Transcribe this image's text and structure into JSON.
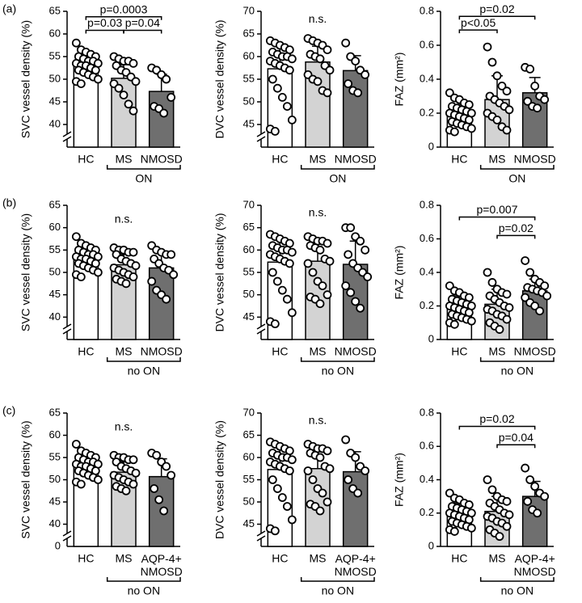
{
  "chart_data": [
    {
      "type": "bar",
      "panel_label": "(a)",
      "ylabel": "SVC vessel density (%)",
      "categories": [
        "HC",
        "MS",
        "NMOSD"
      ],
      "values": [
        53.5,
        50.2,
        47.3
      ],
      "errors": [
        2.3,
        3,
        3.8
      ],
      "colors": [
        "#ffffff",
        "#d3d3d3",
        "#6f6f6f"
      ],
      "ylim": [
        35,
        65
      ],
      "yticks": [
        40,
        45,
        50,
        55,
        60,
        65
      ],
      "axis_break": true,
      "points": [
        [
          58,
          56.5,
          56,
          55.5,
          55,
          55,
          54.5,
          54,
          54,
          53.5,
          53.5,
          53,
          53,
          52.5,
          52,
          52,
          51.5,
          51,
          50.5,
          50,
          49.5,
          49
        ],
        [
          55,
          54.5,
          54,
          54,
          53.5,
          53,
          52,
          51.5,
          50.5,
          49.5,
          49,
          48,
          46.5,
          44.5,
          43
        ],
        [
          52.5,
          52,
          51,
          50,
          46,
          44,
          43.5,
          42.5
        ]
      ],
      "annotations": [
        {
          "text": "p=0.0003",
          "from": 0,
          "to": 2,
          "y": 63.8
        },
        {
          "text": "p=0.03",
          "from": 0,
          "to": 1,
          "y": 60.8
        },
        {
          "text": "p=0.04",
          "from": 1,
          "to": 2,
          "y": 60.8
        }
      ],
      "group": {
        "label": "ON",
        "from": 1,
        "to": 2
      }
    },
    {
      "type": "bar",
      "ylabel": "DVC vessel density (%)",
      "categories": [
        "HC",
        "MS",
        "NMOSD"
      ],
      "values": [
        57.3,
        58.8,
        56.9
      ],
      "errors": [
        5,
        3.5,
        3.3
      ],
      "colors": [
        "#ffffff",
        "#d3d3d3",
        "#6f6f6f"
      ],
      "ylim": [
        40,
        70
      ],
      "yticks": [
        45,
        50,
        55,
        60,
        65,
        70
      ],
      "axis_break": true,
      "points": [
        [
          63.5,
          63,
          62.5,
          62,
          61.5,
          61,
          60.5,
          60,
          60,
          59.5,
          59,
          58.5,
          58,
          57.5,
          57,
          55,
          53,
          51,
          49,
          46,
          44,
          43.5
        ],
        [
          64,
          63.5,
          63,
          62.5,
          61.5,
          60.5,
          60,
          59.5,
          58,
          57,
          56,
          55,
          54.5,
          52.5,
          52
        ],
        [
          63,
          60,
          59,
          57,
          56,
          54,
          52.5,
          52
        ]
      ],
      "annotations": [
        {
          "text": "n.s.",
          "y": 68.2
        }
      ],
      "group": {
        "label": "ON",
        "from": 1,
        "to": 2
      }
    },
    {
      "type": "bar",
      "ylabel": "FAZ (mm²)",
      "categories": [
        "HC",
        "MS",
        "NMOSD"
      ],
      "values": [
        0.19,
        0.28,
        0.32
      ],
      "errors": [
        0.06,
        0.14,
        0.09
      ],
      "colors": [
        "#ffffff",
        "#d3d3d3",
        "#6f6f6f"
      ],
      "ylim": [
        0,
        0.8
      ],
      "yticks": [
        0,
        0.2,
        0.4,
        0.6,
        0.8
      ],
      "axis_break": false,
      "points": [
        [
          0.32,
          0.29,
          0.28,
          0.26,
          0.25,
          0.24,
          0.23,
          0.22,
          0.21,
          0.2,
          0.2,
          0.19,
          0.18,
          0.17,
          0.16,
          0.15,
          0.14,
          0.13,
          0.12,
          0.11,
          0.1,
          0.09
        ],
        [
          0.59,
          0.5,
          0.42,
          0.36,
          0.33,
          0.3,
          0.28,
          0.26,
          0.24,
          0.22,
          0.2,
          0.18,
          0.16,
          0.12,
          0.1
        ],
        [
          0.47,
          0.46,
          0.36,
          0.3,
          0.28,
          0.27,
          0.24,
          0.23
        ]
      ],
      "annotations": [
        {
          "text": "p=0.02",
          "from": 0,
          "to": 2,
          "y": 0.77
        },
        {
          "text": "p<0.05",
          "from": 0,
          "to": 1,
          "y": 0.69
        }
      ],
      "group": {
        "label": "ON",
        "from": 1,
        "to": 2
      }
    },
    {
      "type": "bar",
      "panel_label": "(b)",
      "ylabel": "SVC vessel density (%)",
      "categories": [
        "HC",
        "MS",
        "NMOSD"
      ],
      "values": [
        53.3,
        51.7,
        51
      ],
      "errors": [
        2.2,
        2.3,
        3.3
      ],
      "colors": [
        "#ffffff",
        "#d3d3d3",
        "#6f6f6f"
      ],
      "ylim": [
        35,
        65
      ],
      "yticks": [
        40,
        45,
        50,
        55,
        60,
        65
      ],
      "axis_break": true,
      "points": [
        [
          58,
          56.5,
          56,
          55.5,
          55,
          55,
          54.5,
          54,
          54,
          53.5,
          53.5,
          53,
          53,
          52.5,
          52,
          52,
          51.5,
          51,
          50.5,
          50,
          49.5,
          49
        ],
        [
          55.5,
          55,
          55,
          54.5,
          54.5,
          54,
          53,
          52.5,
          52,
          51.5,
          51,
          50.5,
          50,
          49.5,
          49,
          48.5,
          48,
          47.5
        ],
        [
          56,
          55,
          54.5,
          54,
          54,
          53,
          52,
          51,
          50.5,
          49.5,
          48,
          46,
          45,
          44
        ]
      ],
      "annotations": [
        {
          "text": "n.s.",
          "y": 61.8
        }
      ],
      "group": {
        "label": "no ON",
        "from": 1,
        "to": 2
      }
    },
    {
      "type": "bar",
      "ylabel": "DVC vessel density (%)",
      "categories": [
        "HC",
        "MS",
        "NMOSD"
      ],
      "values": [
        57.3,
        57.5,
        56.8
      ],
      "errors": [
        5,
        4.8,
        5.2
      ],
      "colors": [
        "#ffffff",
        "#d3d3d3",
        "#6f6f6f"
      ],
      "ylim": [
        40,
        70
      ],
      "yticks": [
        45,
        50,
        55,
        60,
        65,
        70
      ],
      "axis_break": true,
      "points": [
        [
          63.5,
          63,
          62.5,
          62,
          61.5,
          61,
          60.5,
          60,
          60,
          59.5,
          59,
          58.5,
          58,
          57.5,
          57,
          55,
          53,
          51,
          49,
          46,
          44,
          43.5
        ],
        [
          63,
          62.5,
          62,
          62,
          61.5,
          61,
          60.5,
          60,
          58,
          57.5,
          57,
          55,
          53,
          52,
          50,
          49.5,
          49,
          48
        ],
        [
          65,
          65,
          63,
          62,
          60,
          59,
          57,
          56,
          55,
          54,
          52,
          50.5,
          48.5,
          47
        ]
      ],
      "annotations": [
        {
          "text": "n.s.",
          "y": 68.2
        }
      ],
      "group": {
        "label": "no ON",
        "from": 1,
        "to": 2
      }
    },
    {
      "type": "bar",
      "ylabel": "FAZ (mm²)",
      "categories": [
        "HC",
        "MS",
        "NMOSD"
      ],
      "values": [
        0.2,
        0.21,
        0.29
      ],
      "errors": [
        0.06,
        0.09,
        0.07
      ],
      "colors": [
        "#ffffff",
        "#d3d3d3",
        "#6f6f6f"
      ],
      "ylim": [
        0,
        0.8
      ],
      "yticks": [
        0,
        0.2,
        0.4,
        0.6,
        0.8
      ],
      "axis_break": false,
      "points": [
        [
          0.32,
          0.29,
          0.28,
          0.26,
          0.25,
          0.24,
          0.23,
          0.22,
          0.21,
          0.2,
          0.2,
          0.19,
          0.18,
          0.17,
          0.16,
          0.15,
          0.14,
          0.13,
          0.12,
          0.11,
          0.1,
          0.09
        ],
        [
          0.4,
          0.34,
          0.3,
          0.28,
          0.27,
          0.26,
          0.24,
          0.22,
          0.2,
          0.19,
          0.18,
          0.17,
          0.15,
          0.14,
          0.12,
          0.1,
          0.08,
          0.06
        ],
        [
          0.47,
          0.4,
          0.36,
          0.34,
          0.32,
          0.31,
          0.3,
          0.29,
          0.28,
          0.26,
          0.25,
          0.22,
          0.2,
          0.17
        ]
      ],
      "annotations": [
        {
          "text": "p=0.007",
          "from": 0,
          "to": 2,
          "y": 0.73
        },
        {
          "text": "p=0.02",
          "from": 1,
          "to": 2,
          "y": 0.62
        }
      ],
      "group": {
        "label": "no ON",
        "from": 1,
        "to": 2
      }
    },
    {
      "type": "bar",
      "panel_label": "(c)",
      "ylabel": "SVC vessel density (%)",
      "categories": [
        "HC",
        "MS",
        "AQP-4+\nNMOSD"
      ],
      "values": [
        53.3,
        51.7,
        50.7
      ],
      "errors": [
        2.2,
        2.3,
        4
      ],
      "colors": [
        "#ffffff",
        "#d3d3d3",
        "#6f6f6f"
      ],
      "ylim": [
        35,
        65
      ],
      "yticks": [
        40,
        45,
        50,
        55,
        60,
        65
      ],
      "axis_break": true,
      "break_label": "0",
      "points": [
        [
          58,
          56.5,
          56,
          55.5,
          55,
          55,
          54.5,
          54,
          54,
          53.5,
          53.5,
          53,
          53,
          52.5,
          52,
          52,
          51.5,
          51,
          50.5,
          50,
          49.5,
          49
        ],
        [
          55.5,
          55,
          55,
          54.5,
          54.5,
          54,
          53,
          52.5,
          52,
          51.5,
          51,
          50.5,
          50,
          49.5,
          49,
          48.5,
          48,
          47.5
        ],
        [
          56,
          55.5,
          54,
          53,
          51,
          48,
          45.5,
          43
        ]
      ],
      "annotations": [
        {
          "text": "n.s.",
          "y": 61.8
        }
      ],
      "group": {
        "label": "no ON",
        "from": 1,
        "to": 2
      }
    },
    {
      "type": "bar",
      "ylabel": "DVC vessel density (%)",
      "categories": [
        "HC",
        "MS",
        "AQP-4+\nNMOSD"
      ],
      "values": [
        57.3,
        57.5,
        56.8
      ],
      "errors": [
        5,
        4.8,
        4.5
      ],
      "colors": [
        "#ffffff",
        "#d3d3d3",
        "#6f6f6f"
      ],
      "ylim": [
        40,
        70
      ],
      "yticks": [
        45,
        50,
        55,
        60,
        65,
        70
      ],
      "axis_break": true,
      "points": [
        [
          63.5,
          63,
          62.5,
          62,
          61.5,
          61,
          60.5,
          60,
          60,
          59.5,
          59,
          58.5,
          58,
          57.5,
          57,
          55,
          53,
          51,
          49,
          46,
          44,
          43.5
        ],
        [
          63,
          62.5,
          62,
          62,
          61.5,
          61,
          60.5,
          60,
          58,
          57.5,
          57,
          55,
          53,
          52,
          50,
          49.5,
          49,
          48
        ],
        [
          64,
          61,
          60,
          58,
          57,
          55,
          53,
          52
        ]
      ],
      "annotations": [
        {
          "text": "n.s.",
          "y": 68.2
        }
      ],
      "group": {
        "label": "no ON",
        "from": 1,
        "to": 2
      }
    },
    {
      "type": "bar",
      "ylabel": "FAZ (mm²)",
      "categories": [
        "HC",
        "MS",
        "AQP-4+\nNMOSD"
      ],
      "values": [
        0.2,
        0.21,
        0.3
      ],
      "errors": [
        0.06,
        0.09,
        0.09
      ],
      "colors": [
        "#ffffff",
        "#d3d3d3",
        "#6f6f6f"
      ],
      "ylim": [
        0,
        0.8
      ],
      "yticks": [
        0,
        0.2,
        0.4,
        0.6,
        0.8
      ],
      "axis_break": false,
      "points": [
        [
          0.32,
          0.29,
          0.28,
          0.26,
          0.25,
          0.24,
          0.23,
          0.22,
          0.21,
          0.2,
          0.2,
          0.19,
          0.18,
          0.17,
          0.16,
          0.15,
          0.14,
          0.13,
          0.12,
          0.11,
          0.1,
          0.09
        ],
        [
          0.4,
          0.34,
          0.3,
          0.28,
          0.27,
          0.26,
          0.24,
          0.22,
          0.2,
          0.19,
          0.18,
          0.17,
          0.15,
          0.14,
          0.12,
          0.1,
          0.08,
          0.06
        ],
        [
          0.47,
          0.4,
          0.36,
          0.32,
          0.3,
          0.27,
          0.22,
          0.2
        ]
      ],
      "annotations": [
        {
          "text": "p=0.02",
          "from": 0,
          "to": 2,
          "y": 0.72
        },
        {
          "text": "p=0.04",
          "from": 1,
          "to": 2,
          "y": 0.61
        }
      ],
      "group": {
        "label": "no ON",
        "from": 1,
        "to": 2
      }
    }
  ]
}
